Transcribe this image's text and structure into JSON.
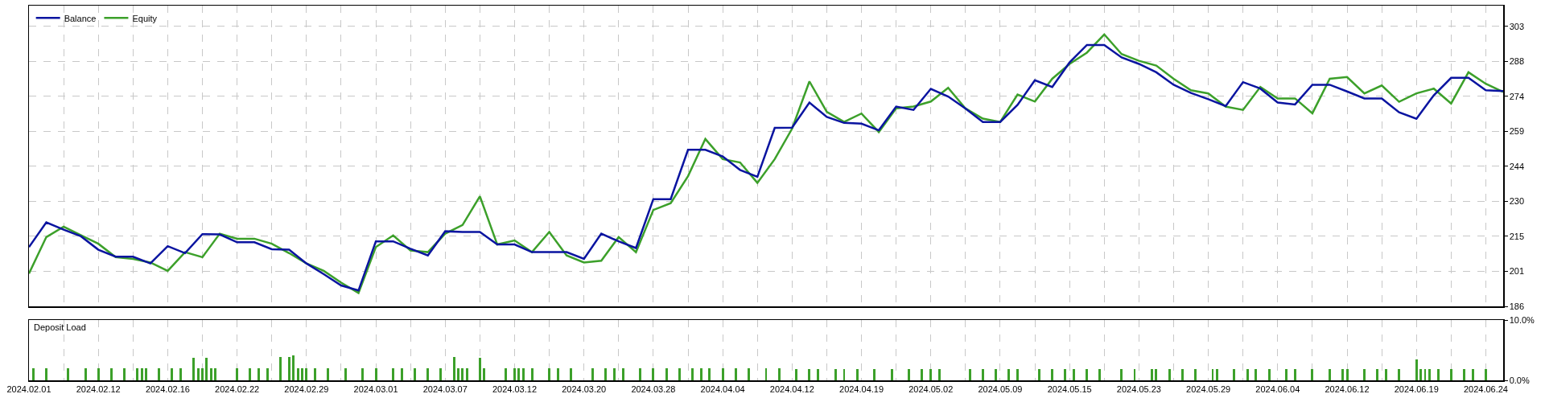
{
  "chart_data": [
    {
      "type": "line",
      "categories": [
        "2024.02.01",
        null,
        null,
        null,
        "2024.02.12",
        null,
        null,
        null,
        "2024.02.16",
        null,
        null,
        null,
        "2024.02.22",
        null,
        null,
        null,
        "2024.02.29",
        null,
        null,
        null,
        "2024.03.01",
        null,
        null,
        null,
        "2024.03.07",
        null,
        null,
        null,
        "2024.03.12",
        null,
        null,
        null,
        "2024.03.20",
        null,
        null,
        null,
        "2024.03.28",
        null,
        null,
        null,
        "2024.04.04",
        null,
        null,
        null,
        "2024.04.12",
        null,
        null,
        null,
        "2024.04.19",
        null,
        null,
        null,
        "2024.05.02",
        null,
        null,
        null,
        "2024.05.09",
        null,
        null,
        null,
        "2024.05.15",
        null,
        null,
        null,
        "2024.05.23",
        null,
        null,
        null,
        "2024.05.29",
        null,
        null,
        null,
        "2024.06.04",
        null,
        null,
        null,
        "2024.06.12",
        null,
        null,
        null,
        "2024.06.19",
        null,
        null,
        null,
        "2024.06.24",
        null
      ],
      "series": [
        {
          "name": "Balance",
          "color": "#0a14a0",
          "values": [
            210.7,
            221.0,
            218.0,
            215.2,
            209.6,
            206.7,
            206.7,
            203.9,
            211.1,
            208.2,
            216.1,
            216.0,
            212.7,
            212.7,
            209.8,
            209.6,
            203.9,
            199.4,
            194.7,
            192.6,
            213.1,
            213.1,
            210.0,
            207.2,
            217.3,
            217.0,
            217.0,
            211.8,
            211.8,
            208.6,
            208.6,
            208.6,
            205.8,
            216.3,
            213.1,
            210.3,
            230.7,
            230.7,
            251.3,
            251.3,
            248.5,
            242.9,
            240.0,
            260.4,
            260.5,
            271.0,
            265.0,
            262.5,
            262.2,
            259.4,
            269.3,
            267.9,
            276.7,
            273.5,
            268.5,
            262.9,
            262.9,
            270.0,
            280.3,
            277.5,
            287.7,
            295.0,
            295.0,
            289.8,
            287.1,
            283.6,
            278.4,
            275.0,
            272.4,
            269.5,
            279.5,
            276.8,
            271.0,
            270.2,
            278.4,
            278.4,
            275.6,
            272.7,
            272.7,
            266.9,
            264.2,
            274.0,
            281.3,
            281.3,
            276.1,
            275.8
          ]
        },
        {
          "name": "Equity",
          "color": "#3ca02a",
          "values": [
            199.7,
            214.9,
            219.2,
            215.6,
            212.1,
            206.5,
            205.8,
            204.3,
            200.8,
            208.6,
            206.5,
            216.3,
            214.2,
            214.2,
            212.1,
            208.2,
            203.9,
            200.8,
            195.9,
            191.6,
            210.7,
            215.6,
            209.3,
            208.6,
            216.3,
            219.9,
            231.9,
            211.8,
            213.5,
            208.6,
            217.0,
            207.2,
            204.3,
            205.0,
            214.9,
            208.6,
            226.2,
            229.0,
            240.3,
            255.8,
            247.4,
            246.0,
            237.5,
            247.4,
            260.1,
            279.8,
            267.1,
            262.9,
            266.4,
            258.7,
            268.6,
            269.3,
            271.4,
            277.1,
            268.5,
            264.3,
            262.9,
            274.3,
            271.4,
            280.9,
            287.1,
            291.8,
            299.4,
            291.2,
            288.4,
            286.4,
            280.9,
            276.1,
            274.8,
            269.3,
            267.9,
            277.5,
            272.7,
            272.7,
            266.5,
            280.9,
            281.6,
            274.8,
            278.1,
            271.3,
            274.8,
            276.8,
            270.6,
            283.6,
            278.8,
            275.4
          ]
        }
      ],
      "ylim": [
        186,
        311.4
      ],
      "yticks": [
        186,
        {
          "value": 200.6,
          "label": "201"
        },
        {
          "value": 215.2,
          "label": "215"
        },
        {
          "value": 229.8,
          "label": "230"
        },
        {
          "value": 244.4,
          "label": "244"
        },
        259,
        {
          "value": 273.6,
          "label": "274"
        },
        {
          "value": 288.2,
          "label": "288"
        },
        {
          "value": 302.8,
          "label": "303"
        }
      ],
      "grid": true,
      "legend": "top left",
      "tick_labels": "y"
    },
    {
      "type": "bar",
      "title": "Deposit Load",
      "color": "#3ca02a",
      "categories": [
        "2024.02.01",
        null,
        null,
        null,
        null,
        null,
        null,
        null,
        null,
        null,
        null,
        null,
        null,
        null,
        null,
        null,
        "2024.02.12",
        null,
        null,
        null,
        null,
        null,
        null,
        null,
        null,
        null,
        null,
        null,
        null,
        null,
        null,
        null,
        "2024.02.16",
        null,
        null,
        null,
        null,
        null,
        null,
        null,
        null,
        null,
        null,
        null,
        null,
        null,
        null,
        null,
        "2024.02.22",
        null,
        null,
        null,
        null,
        null,
        null,
        null,
        null,
        null,
        null,
        null,
        null,
        null,
        null,
        null,
        "2024.02.29",
        null,
        null,
        null,
        null,
        null,
        null,
        null,
        null,
        null,
        null,
        null,
        null,
        null,
        null,
        null,
        "2024.03.01",
        null,
        null,
        null,
        null,
        null,
        null,
        null,
        null,
        null,
        null,
        null,
        null,
        null,
        null,
        null,
        "2024.03.07",
        null,
        null,
        null,
        null,
        null,
        null,
        null,
        null,
        null,
        null,
        null,
        null,
        null,
        null,
        null,
        "2024.03.12",
        null,
        null,
        null,
        null,
        null,
        null,
        null,
        null,
        null,
        null,
        null,
        null,
        null,
        null,
        null,
        "2024.03.20",
        null,
        null,
        null,
        null,
        null,
        null,
        null,
        null,
        null,
        null,
        null,
        null,
        null,
        null,
        null,
        "2024.03.28",
        null,
        null,
        null,
        null,
        null,
        null,
        null,
        null,
        null,
        null,
        null,
        null,
        null,
        null,
        null,
        "2024.04.04",
        null,
        null,
        null,
        null,
        null,
        null,
        null,
        null,
        null,
        null,
        null,
        null,
        null,
        null,
        null,
        "2024.04.12",
        null,
        null,
        null,
        null,
        null,
        null,
        null,
        null,
        null,
        null,
        null,
        null,
        null,
        null,
        null,
        "2024.04.19",
        null,
        null,
        null,
        null,
        null,
        null,
        null,
        null,
        null,
        null,
        null,
        null,
        null,
        null,
        null,
        "2024.05.02",
        null,
        null,
        null,
        null,
        null,
        null,
        null,
        null,
        null,
        null,
        null,
        null,
        null,
        null,
        null,
        "2024.05.09",
        null,
        null,
        null,
        null,
        null,
        null,
        null,
        null,
        null,
        null,
        null,
        null,
        null,
        null,
        null,
        "2024.05.15",
        null,
        null,
        null,
        null,
        null,
        null,
        null,
        null,
        null,
        null,
        null,
        null,
        null,
        null,
        null,
        "2024.05.23",
        null,
        null,
        null,
        null,
        null,
        null,
        null,
        null,
        null,
        null,
        null,
        null,
        null,
        null,
        null,
        "2024.05.29",
        null,
        null,
        null,
        null,
        null,
        null,
        null,
        null,
        null,
        null,
        null,
        null,
        null,
        null,
        null,
        "2024.06.04",
        null,
        null,
        null,
        null,
        null,
        null,
        null,
        null,
        null,
        null,
        null,
        null,
        null,
        null,
        null,
        "2024.06.12",
        null,
        null,
        null,
        null,
        null,
        null,
        null,
        null,
        null,
        null,
        null,
        null,
        null,
        null,
        null,
        "2024.06.19",
        null,
        null,
        null,
        null,
        null,
        null,
        null,
        null,
        null,
        null,
        null,
        null,
        null,
        null,
        null,
        "2024.06.24",
        null,
        null,
        null,
        null
      ],
      "values": [
        null,
        2,
        null,
        null,
        2,
        null,
        null,
        null,
        null,
        2,
        null,
        null,
        null,
        2,
        null,
        null,
        2,
        null,
        null,
        2,
        null,
        null,
        2,
        null,
        null,
        2,
        2,
        2,
        null,
        null,
        2,
        null,
        null,
        2,
        null,
        2,
        null,
        null,
        3.8,
        2,
        2,
        3.8,
        2,
        2,
        null,
        null,
        null,
        null,
        2,
        null,
        null,
        2,
        null,
        2,
        null,
        2,
        null,
        null,
        3.9,
        null,
        3.9,
        4.1,
        2,
        2,
        2,
        null,
        2,
        null,
        null,
        2,
        null,
        null,
        null,
        2,
        null,
        null,
        null,
        2,
        null,
        null,
        2,
        null,
        null,
        null,
        2,
        null,
        2,
        null,
        null,
        2,
        null,
        null,
        2,
        null,
        null,
        2,
        null,
        null,
        3.9,
        2,
        2,
        2,
        null,
        null,
        3.7,
        2,
        null,
        null,
        null,
        null,
        2,
        null,
        2,
        2,
        2,
        null,
        2,
        null,
        null,
        null,
        2,
        null,
        2,
        null,
        null,
        2,
        null,
        null,
        null,
        null,
        2,
        null,
        null,
        2,
        null,
        2,
        null,
        2,
        null,
        null,
        null,
        2,
        null,
        null,
        2,
        null,
        null,
        2,
        null,
        null,
        2,
        null,
        null,
        2,
        null,
        2,
        null,
        2,
        null,
        null,
        2,
        null,
        null,
        2,
        null,
        null,
        2,
        null,
        null,
        null,
        2,
        null,
        null,
        2,
        null,
        null,
        null,
        1.9,
        null,
        null,
        1.9,
        null,
        1.9,
        null,
        null,
        null,
        1.9,
        null,
        1.9,
        null,
        null,
        1.9,
        null,
        null,
        null,
        1.9,
        null,
        null,
        null,
        1.9,
        null,
        null,
        null,
        1.9,
        null,
        null,
        1.9,
        null,
        1.9,
        null,
        1.9,
        null,
        null,
        null,
        null,
        null,
        null,
        1.9,
        null,
        null,
        1.9,
        null,
        null,
        1.9,
        null,
        null,
        1.9,
        null,
        1.9,
        null,
        null,
        null,
        null,
        1.9,
        null,
        null,
        1.9,
        null,
        null,
        1.9,
        null,
        1.9,
        null,
        null,
        1.9,
        null,
        null,
        1.9,
        null,
        null,
        null,
        null,
        1.9,
        null,
        null,
        1.9,
        null,
        null,
        null,
        1.9,
        1.9,
        null,
        null,
        1.9,
        null,
        null,
        1.9,
        null,
        null,
        1.9,
        null,
        null,
        null,
        1.9,
        1.9,
        null,
        null,
        null,
        1.9,
        null,
        null,
        1.9,
        null,
        1.9,
        null,
        null,
        1.9,
        null,
        null,
        null,
        1.9,
        null,
        1.9,
        null,
        null,
        null,
        1.9,
        null,
        null,
        null,
        1.9,
        null,
        null,
        1.9,
        1.9,
        null,
        null,
        null,
        1.9,
        null,
        null,
        1.9,
        null,
        1.9,
        null,
        null,
        1.9,
        null,
        null,
        null,
        3.5,
        1.9,
        1.9,
        1.9,
        null,
        1.9,
        null,
        null,
        1.9,
        null,
        null,
        1.9,
        null,
        1.9,
        null,
        null,
        1.9,
        null,
        null,
        null,
        null
      ],
      "ylim": [
        0,
        10
      ],
      "yticks": [
        {
          "value": 0,
          "label": "0.0%"
        },
        {
          "value": 10,
          "label": "10.0%"
        }
      ],
      "grid": "x"
    }
  ]
}
